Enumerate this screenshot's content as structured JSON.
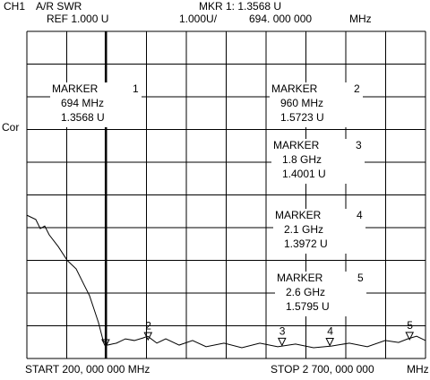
{
  "chart_data": {
    "type": "line",
    "header": {
      "channel": "CH1",
      "measurement": "A/R SWR",
      "reference": "REF 1.000 U",
      "marker_readout": "MKR 1: 1.3568 U",
      "scale": "1.000U/",
      "marker_frequency": "694. 000 000",
      "frequency_unit": "MHz"
    },
    "side_label": "Cor",
    "start": "START 200, 000 000 MHz",
    "stop": "STOP 2 700, 000 000",
    "stop_unit": "MHz",
    "xlim": [
      200,
      2700
    ],
    "ylim": [
      1,
      11
    ],
    "series": [
      {
        "color": "#000000",
        "x": [
          200,
          256,
          284,
          312,
          340,
          397,
          453,
          509,
          565,
          593,
          621,
          649,
          678,
          706,
          762,
          818,
          874,
          930,
          958,
          1015,
          1071,
          1155,
          1239,
          1324,
          1436,
          1548,
          1661,
          1773,
          1885,
          1998,
          2110,
          2222,
          2335,
          2447,
          2531,
          2588,
          2644,
          2700
        ],
        "values": [
          5.38,
          5.25,
          4.97,
          5.05,
          4.78,
          4.42,
          4.0,
          3.74,
          3.19,
          2.92,
          2.51,
          2.1,
          1.55,
          1.41,
          1.47,
          1.6,
          1.55,
          1.63,
          1.68,
          1.47,
          1.6,
          1.41,
          1.55,
          1.36,
          1.47,
          1.33,
          1.47,
          1.36,
          1.44,
          1.33,
          1.38,
          1.47,
          1.36,
          1.55,
          1.49,
          1.6,
          1.68,
          1.55
        ]
      }
    ],
    "markers": [
      {
        "label": "MARKER",
        "number": "1",
        "frequency": "694 MHz",
        "reading": "1.3568 U",
        "x": 694,
        "y": 1.3568
      },
      {
        "label": "MARKER",
        "number": "2",
        "frequency": "960 MHz",
        "reading": "1.5723 U",
        "x": 960,
        "y": 1.5723
      },
      {
        "label": "MARKER",
        "number": "3",
        "frequency": "1.8 GHz",
        "reading": "1.4001 U",
        "x": 1800,
        "y": 1.4001
      },
      {
        "label": "MARKER",
        "number": "4",
        "frequency": "2.1 GHz",
        "reading": "1.3972 U",
        "x": 2100,
        "y": 1.3972
      },
      {
        "label": "MARKER",
        "number": "5",
        "frequency": "2.6 GHz",
        "reading": "1.5795 U",
        "x": 2600,
        "y": 1.5795
      }
    ]
  }
}
